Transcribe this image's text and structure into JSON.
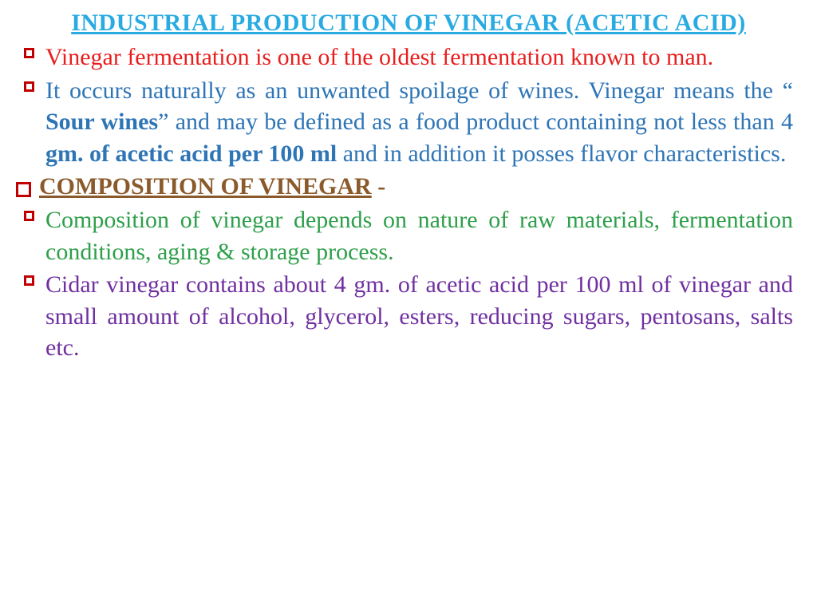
{
  "title": {
    "text": "INDUSTRIAL  PRODUCTION OF VINEGAR (ACETIC ACID)",
    "color": "#29abe2",
    "fontsize": 30
  },
  "body_fontsize": 30,
  "bullets": {
    "square_color": "#c00000",
    "box_color": "#c00000"
  },
  "items": [
    {
      "type": "square",
      "color": "#e81e1e",
      "text": "Vinegar fermentation is one of the oldest fermentation known to man."
    },
    {
      "type": "square",
      "color": "#2e75b6",
      "segments": [
        {
          "t": "It occurs naturally as an unwanted spoilage of wines. Vinegar means the “ ",
          "bold": false
        },
        {
          "t": "Sour wines",
          "bold": true
        },
        {
          "t": "” and may be defined as a food product containing not less than 4",
          "bold": false
        },
        {
          "t": " gm. of acetic acid per 100 ml",
          "bold": true
        },
        {
          "t": " and in addition it posses flavor characteristics.",
          "bold": false
        }
      ]
    },
    {
      "type": "box",
      "color": "#8b5a2b",
      "heading": "COMPOSITION OF VINEGAR",
      "suffix": " -"
    },
    {
      "type": "square",
      "color": "#2e9f4a",
      "text": "Composition of vinegar depends on nature of raw materials, fermentation conditions, aging & storage process."
    },
    {
      "type": "square",
      "color": "#7030a0",
      "text": "Cidar vinegar contains about 4 gm. of acetic acid per 100 ml of vinegar and small amount of alcohol, glycerol, esters, reducing sugars, pentosans, salts etc."
    }
  ]
}
